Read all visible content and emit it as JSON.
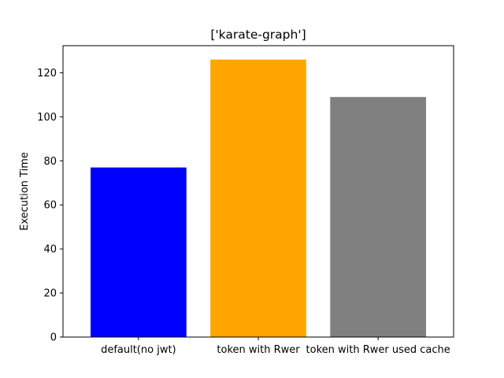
{
  "chart_data": {
    "type": "bar",
    "title": "['karate-graph']",
    "xlabel": "",
    "ylabel": "Execution Time",
    "categories": [
      "default(no jwt)",
      "token with Rwer",
      "token with Rwer used cache"
    ],
    "values": [
      77,
      126,
      109
    ],
    "colors": [
      "#0000ff",
      "#ffa500",
      "#808080"
    ],
    "ylim": [
      0,
      132.3
    ],
    "yticks": [
      0,
      20,
      40,
      60,
      80,
      100,
      120
    ],
    "grid": false,
    "legend": "none"
  }
}
